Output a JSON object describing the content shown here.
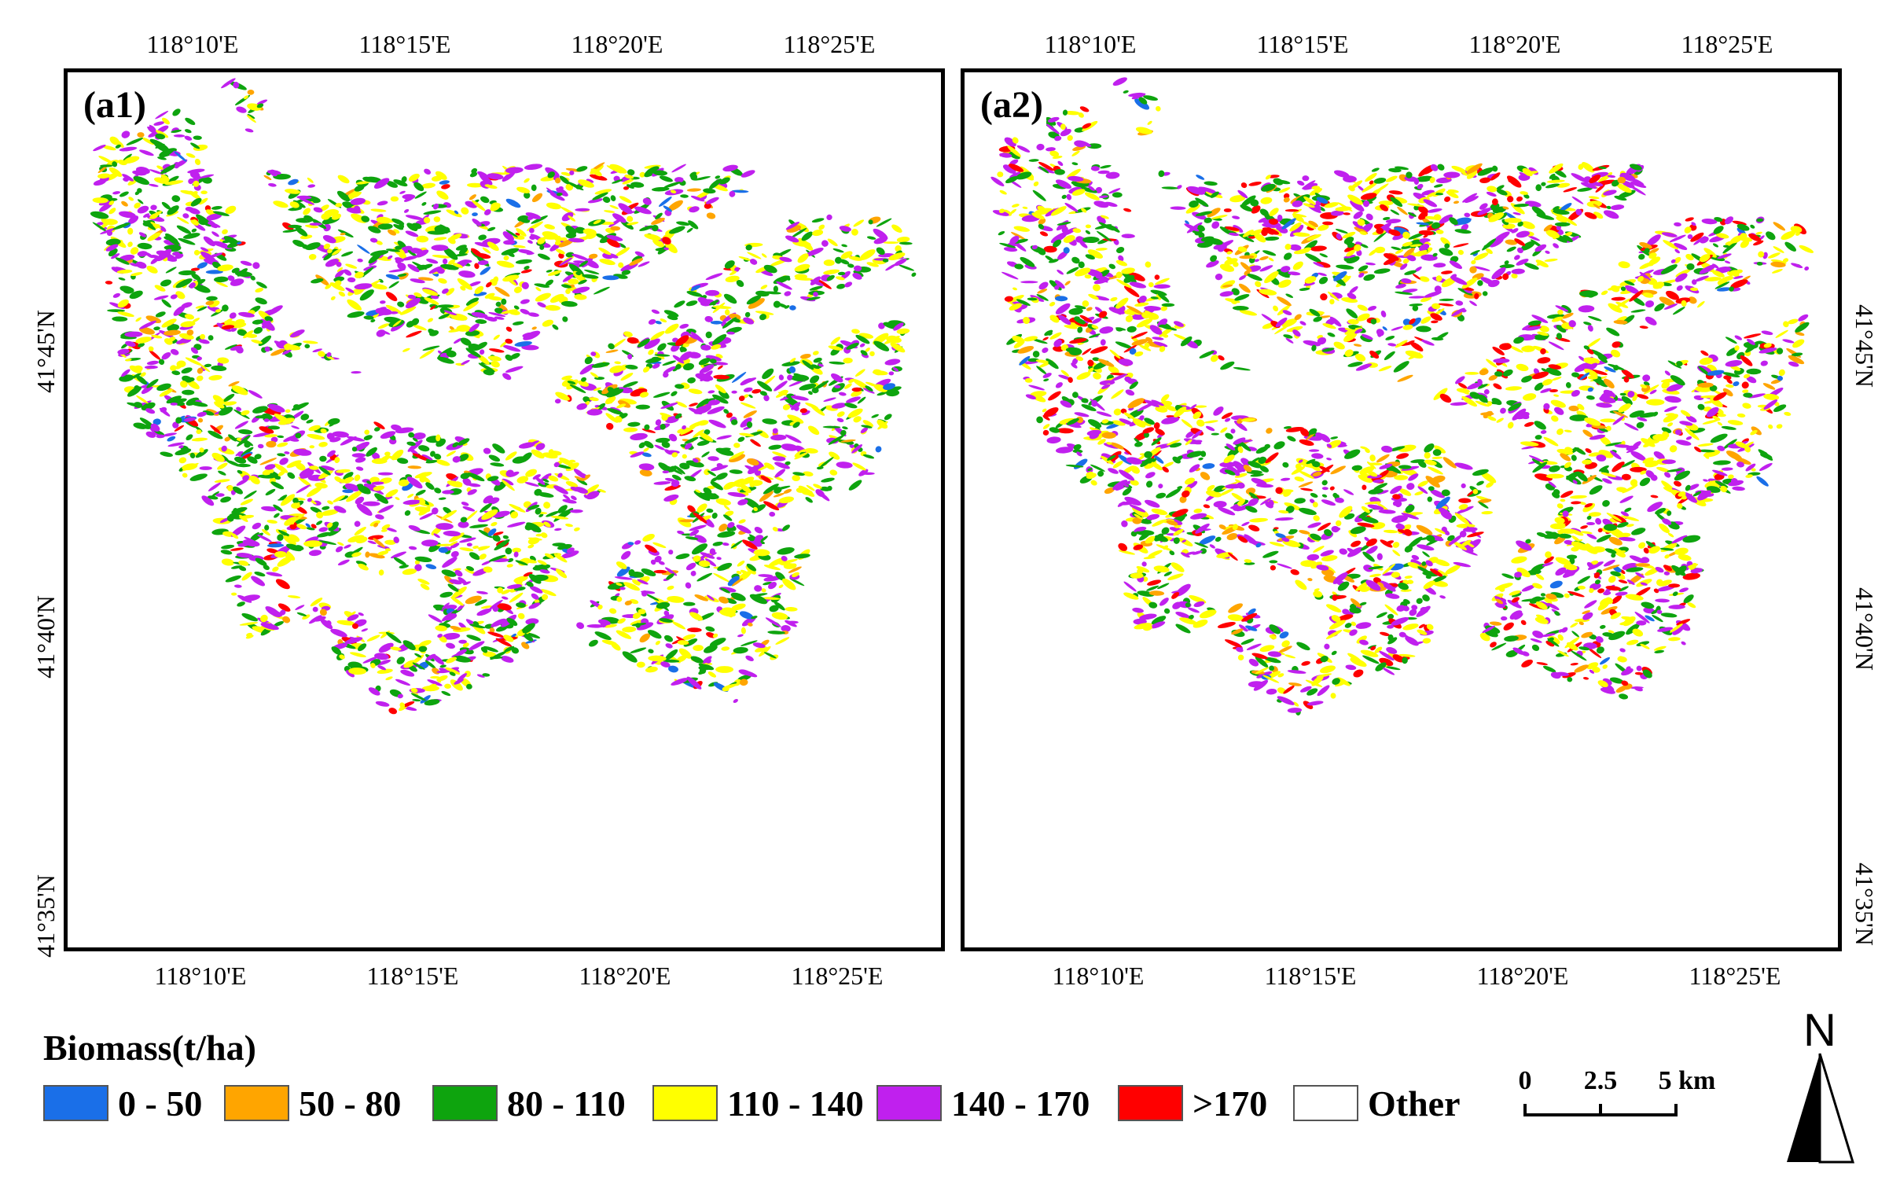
{
  "panels": [
    {
      "id": "a1",
      "label": "(a1)"
    },
    {
      "id": "a2",
      "label": "(a2)"
    }
  ],
  "axes": {
    "lon_ticks": [
      "118°10'E",
      "118°15'E",
      "118°20'E",
      "118°25'E"
    ],
    "lat_ticks": [
      "41°45'N",
      "41°40'N",
      "41°35'N"
    ]
  },
  "legend": {
    "title": "Biomass(t/ha)",
    "items": [
      {
        "label": "0 - 50",
        "color": "#1a6fe8"
      },
      {
        "label": "50 - 80",
        "color": "#ffa500"
      },
      {
        "label": "80 - 110",
        "color": "#0ea40e"
      },
      {
        "label": "110 - 140",
        "color": "#ffff00"
      },
      {
        "label": "140 - 170",
        "color": "#c020ee"
      },
      {
        "label": ">170",
        "color": "#ff0000"
      },
      {
        "label": "Other",
        "color": "#ffffff"
      }
    ]
  },
  "scalebar": {
    "labels": [
      "0",
      "2.5",
      "5 km"
    ]
  },
  "north_arrow": {
    "label": "N"
  }
}
